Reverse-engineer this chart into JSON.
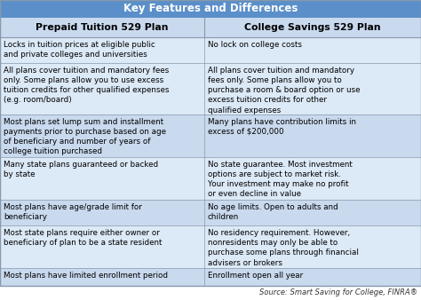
{
  "title": "Key Features and Differences",
  "title_bg": "#5b8fc9",
  "title_color": "#ffffff",
  "header_bg": "#c9d9ee",
  "header_color": "#000000",
  "col1_header": "Prepaid Tuition 529 Plan",
  "col2_header": "College Savings 529 Plan",
  "row_bg_light": "#dce9f7",
  "row_bg_mid": "#c9d9ee",
  "border_color": "#8899aa",
  "source_text": "Source: Smart Saving for College, FINRA®",
  "col_split": 0.485,
  "font_size": 6.3,
  "header_font_size": 7.8,
  "title_font_size": 8.5,
  "rows": [
    [
      "Locks in tuition prices at eligible public\nand private colleges and universities",
      "No lock on college costs"
    ],
    [
      "All plans cover tuition and mandatory fees\nonly. Some plans allow you to use excess\ntuition credits for other qualified expenses\n(e.g. room/board)",
      "All plans cover tuition and mandatory\nfees only. Some plans allow you to\npurchase a room & board option or use\nexcess tuition credits for other\nqualified expenses"
    ],
    [
      "Most plans set lump sum and installment\npayments prior to purchase based on age\nof beneficiary and number of years of\ncollege tuition purchased",
      "Many plans have contribution limits in\nexcess of $200,000"
    ],
    [
      "Many state plans guaranteed or backed\nby state",
      "No state guarantee. Most investment\noptions are subject to market risk.\nYour investment may make no profit\nor even decline in value"
    ],
    [
      "Most plans have age/grade limit for\nbeneficiary",
      "No age limits. Open to adults and\nchildren"
    ],
    [
      "Most state plans require either owner or\nbeneficiary of plan to be a state resident",
      "No residency requirement. However,\nnonresidents may only be able to\npurchase some plans through financial\nadvisers or brokers"
    ],
    [
      "Most plans have limited enrollment period",
      "Enrollment open all year"
    ]
  ],
  "row_line_counts": [
    2,
    5,
    4,
    4,
    2,
    4,
    1
  ],
  "row_colors": [
    "light",
    "light",
    "mid",
    "light",
    "mid",
    "light",
    "mid"
  ]
}
